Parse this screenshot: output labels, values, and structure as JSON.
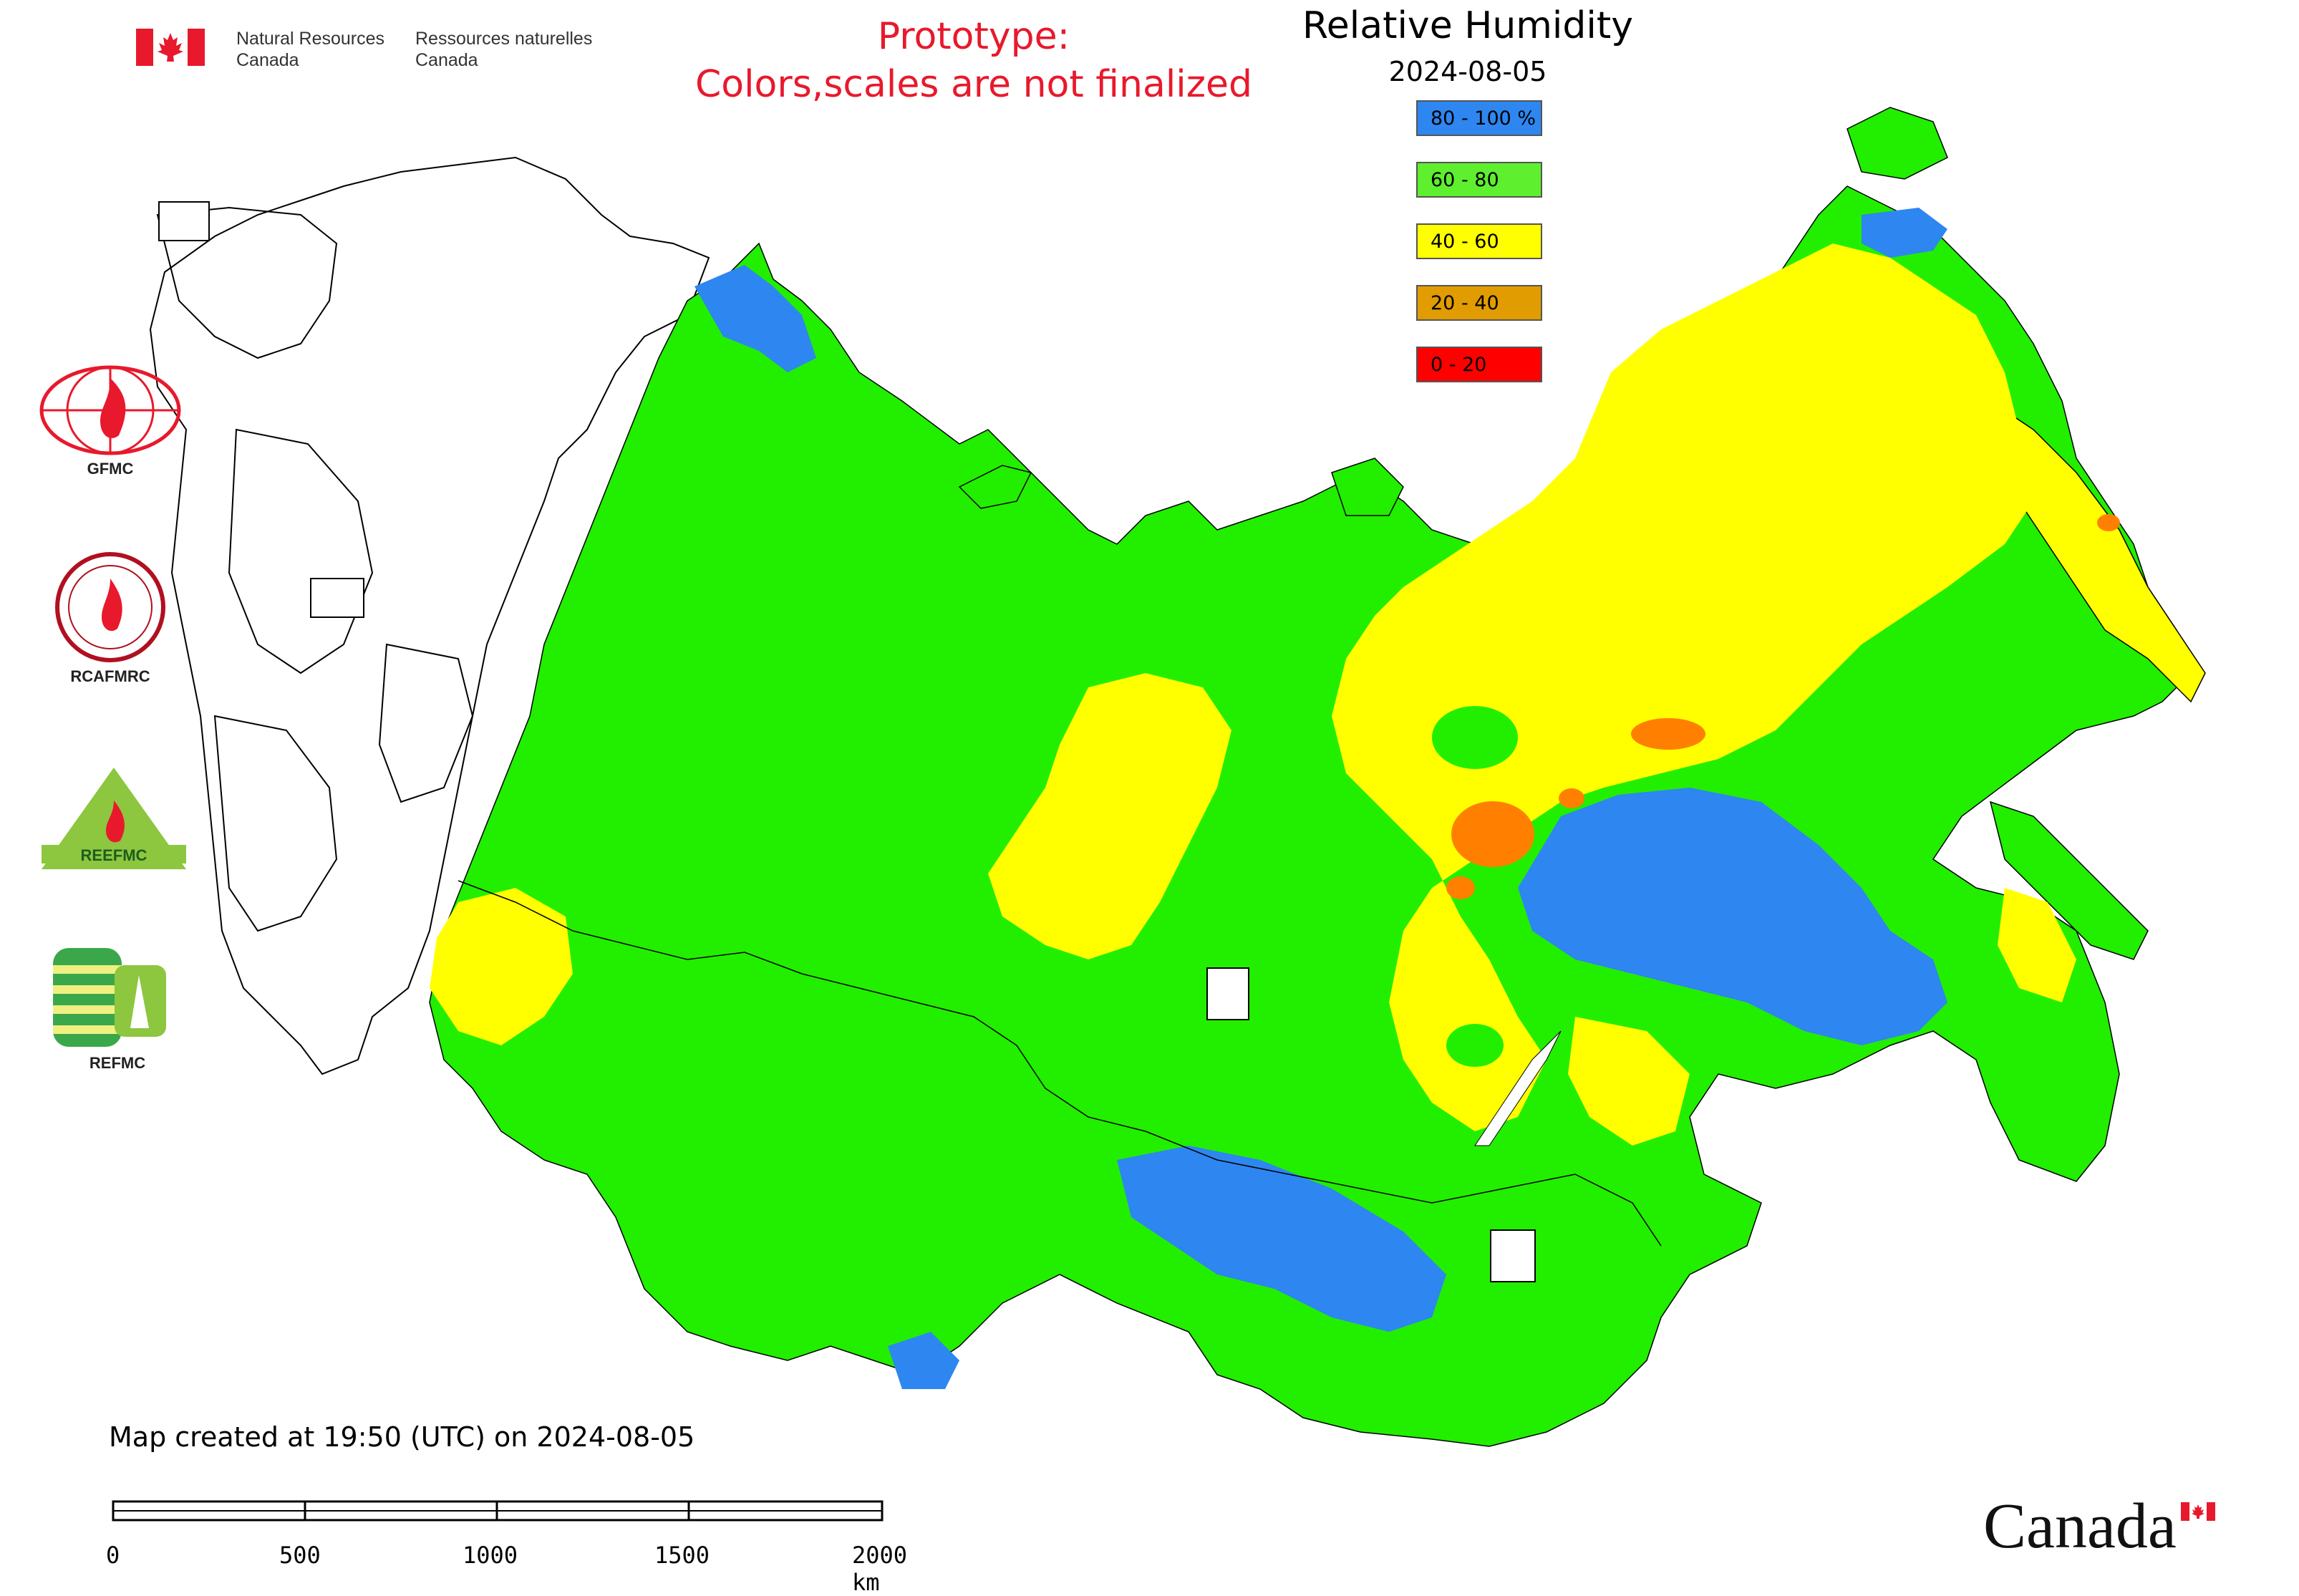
{
  "header": {
    "org_en_line1": "Natural Resources",
    "org_en_line2": "Canada",
    "org_fr_line1": "Ressources naturelles",
    "org_fr_line2": "Canada",
    "prototype_line1": "Prototype:",
    "prototype_line2": "Colors,scales are not finalized"
  },
  "legend": {
    "title": "Relative Humidity",
    "date": "2024-08-05",
    "classes": [
      {
        "label": "80 - 100 %",
        "color": "#2e86f0"
      },
      {
        "label": "60 - 80",
        "color": "#5eef2e"
      },
      {
        "label": "40 - 60",
        "color": "#ffff00"
      },
      {
        "label": "20 - 40",
        "color": "#e09c00"
      },
      {
        "label": "0 - 20",
        "color": "#ff0000"
      }
    ]
  },
  "colors": {
    "very_wet": "#2e86f0",
    "wet": "#22ee00",
    "moderate": "#ffff00",
    "dry": "#ff8000",
    "very_dry": "#ff0000",
    "brand_red": "#e8192c"
  },
  "logos": [
    {
      "name": "GFMC",
      "caption": "GFMC"
    },
    {
      "name": "RCAFMRC",
      "caption": "RCAFMRC"
    },
    {
      "name": "REEFMC",
      "caption": "REEFMC"
    },
    {
      "name": "REFMC",
      "caption": "REFMC"
    }
  ],
  "footer": {
    "created": "Map created at 19:50 (UTC) on 2024-08-05",
    "scale_labels": [
      "0",
      "500",
      "1000",
      "1500",
      "2000 km"
    ],
    "wordmark": "Canada"
  }
}
